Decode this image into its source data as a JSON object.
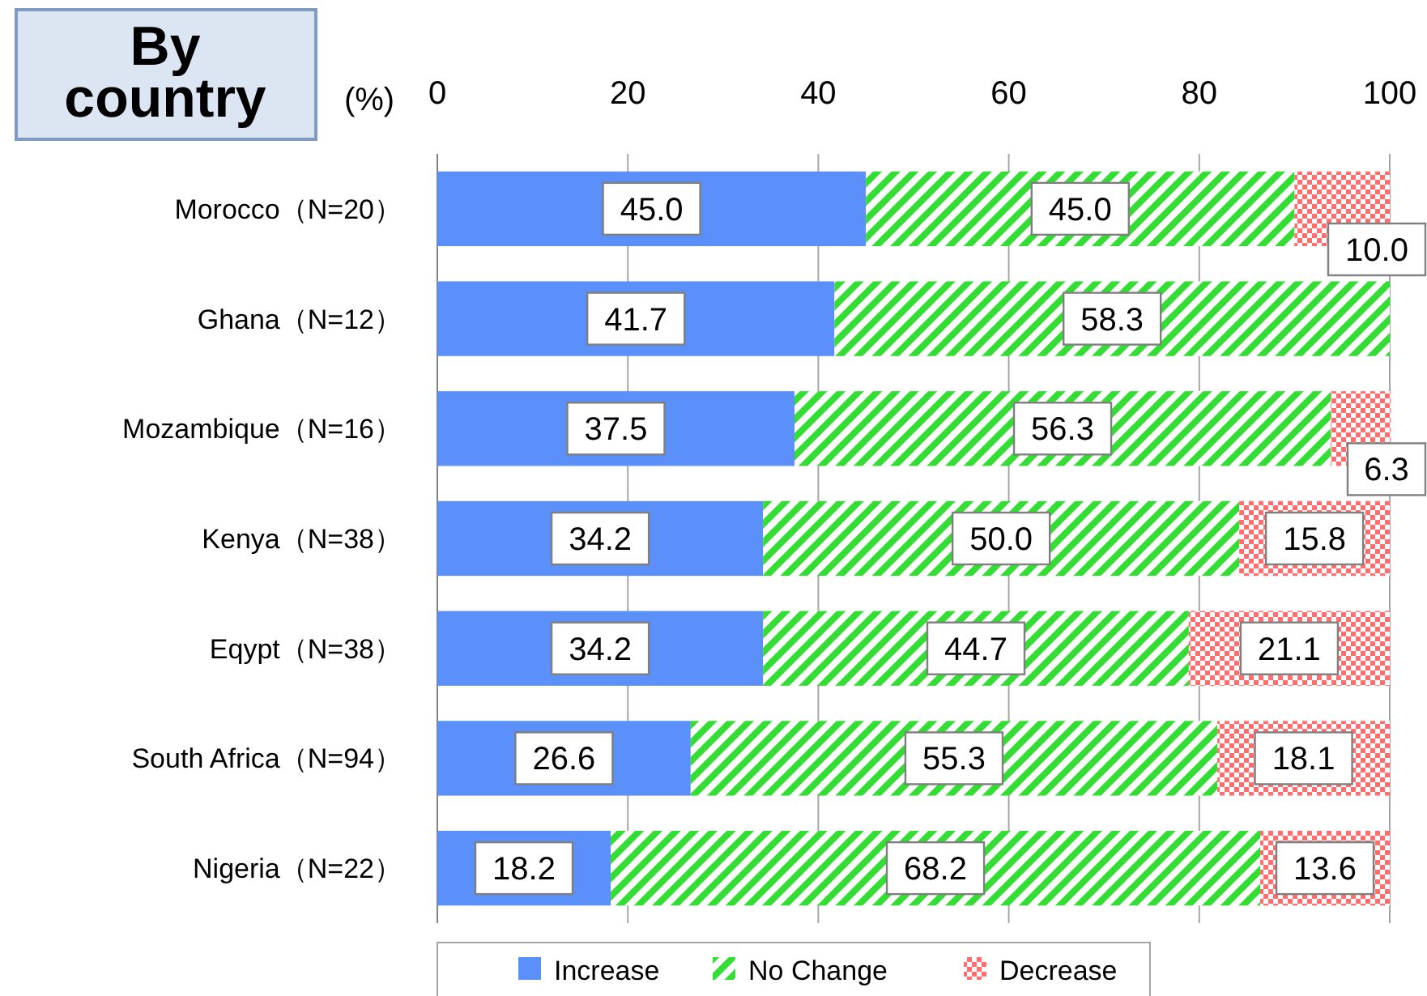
{
  "chart_data": {
    "type": "bar",
    "orientation": "horizontal",
    "stacked": true,
    "title": "By country",
    "xlabel": "(%)",
    "categories": [
      "Morocco（N=20）",
      "Ghana（N=12）",
      "Mozambique（N=16）",
      "Kenya（N=38）",
      "Eqypt（N=38）",
      "South Africa（N=94）",
      "Nigeria（N=22）"
    ],
    "series": [
      {
        "name": "Increase",
        "color": "#5b8ff9",
        "values": [
          45.0,
          41.7,
          37.5,
          34.2,
          34.2,
          26.6,
          18.2
        ],
        "value_labels": [
          "45.0",
          "41.7",
          "37.5",
          "34.2",
          "34.2",
          "26.6",
          "18.2"
        ]
      },
      {
        "name": "No Change",
        "color": "#33dd33",
        "values": [
          45.0,
          58.3,
          56.3,
          50.0,
          44.7,
          55.3,
          68.2
        ],
        "value_labels": [
          "45.0",
          "58.3",
          "56.3",
          "50.0",
          "44.7",
          "55.3",
          "68.2"
        ]
      },
      {
        "name": "Decrease",
        "color": "#ff6f6f",
        "values": [
          10.0,
          null,
          6.3,
          15.8,
          21.1,
          18.1,
          13.6
        ],
        "value_labels": [
          "10.0",
          null,
          "6.3",
          "15.8",
          "21.1",
          "18.1",
          "13.6"
        ]
      }
    ],
    "xlim": [
      0,
      100
    ],
    "xticks": [
      0,
      20,
      40,
      60,
      80,
      100
    ],
    "grid": "x",
    "legend": "bottom"
  }
}
